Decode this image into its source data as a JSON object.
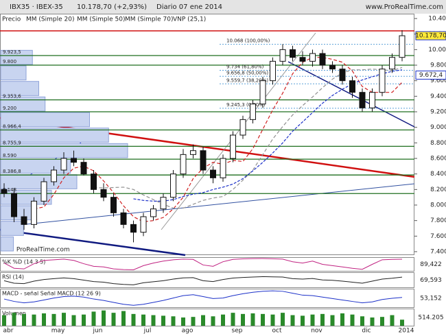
{
  "header": {
    "symbol": "IBX35 · IBEX-35",
    "change": "10.178,70 (+2,93%)",
    "period": "Diario 07 ene 2014",
    "site": "www.ProRealTime.com"
  },
  "watermark": "© ProRealTime.com",
  "chart_data": {
    "type": "candlestick",
    "legend": [
      "Precio",
      "MM (Simple 20)",
      "MM (Simple 50)",
      "MM (Simple 70)",
      "VNP (25,1)"
    ],
    "months": [
      "abr",
      "may",
      "jun",
      "jul",
      "ago",
      "sep",
      "oct",
      "nov",
      "dic",
      "2014"
    ],
    "month_week": [
      0,
      5,
      9,
      14,
      18,
      23,
      27,
      31,
      36,
      40
    ],
    "open": [
      8200,
      8150,
      7850,
      7750,
      8050,
      8300,
      8450,
      8600,
      8550,
      8400,
      8200,
      8100,
      7900,
      7750,
      7650,
      7850,
      7950,
      8100,
      8400,
      8650,
      8700,
      8450,
      8350,
      8600,
      8900,
      9100,
      9300,
      9600,
      9850,
      10000,
      9900,
      9850,
      9950,
      9800,
      9750,
      9600,
      9450,
      9250,
      9450,
      9750,
      9900
    ],
    "high": [
      8280,
      8220,
      7950,
      8100,
      8350,
      8500,
      8680,
      8700,
      8600,
      8450,
      8280,
      8150,
      7950,
      7800,
      7900,
      8000,
      8150,
      8450,
      8720,
      8780,
      8750,
      8500,
      8650,
      8950,
      9150,
      9350,
      9650,
      9900,
      10070,
      10050,
      9980,
      10000,
      10000,
      9850,
      9800,
      9650,
      9500,
      9500,
      9800,
      9950,
      10250
    ],
    "low": [
      8100,
      7780,
      7680,
      7700,
      8000,
      8250,
      8400,
      8500,
      8380,
      8150,
      8050,
      7850,
      7700,
      7520,
      7600,
      7800,
      7900,
      8050,
      8350,
      8600,
      8400,
      8280,
      8300,
      8550,
      8850,
      9050,
      9250,
      9550,
      9800,
      9850,
      9800,
      9780,
      9750,
      9700,
      9550,
      9380,
      9200,
      9200,
      9400,
      9700,
      9850
    ],
    "close": [
      8150,
      7850,
      7750,
      8050,
      8300,
      8450,
      8600,
      8550,
      8400,
      8200,
      8100,
      7900,
      7750,
      7650,
      7850,
      7950,
      8100,
      8400,
      8650,
      8700,
      8450,
      8350,
      8600,
      8900,
      9100,
      9300,
      9600,
      9850,
      10000,
      9900,
      9850,
      9950,
      9800,
      9750,
      9600,
      9450,
      9250,
      9450,
      9750,
      9900,
      10178.7
    ],
    "series": [
      {
        "name": "MM (Simple 20)",
        "color": "#d02020",
        "values": [
          null,
          null,
          null,
          7950,
          7975,
          8137,
          8350,
          8475,
          8500,
          8440,
          8310,
          8160,
          7990,
          7850,
          7785,
          7800,
          7840,
          7950,
          8100,
          8340,
          8475,
          8550,
          8525,
          8575,
          8560,
          8725,
          8975,
          9225,
          9440,
          9690,
          9837,
          9900,
          9900,
          9875,
          9838,
          9725,
          9525,
          9450,
          9450,
          9450,
          9580
        ]
      },
      {
        "name": "MM (Simple 50)",
        "color": "#909090",
        "values": [
          null,
          null,
          null,
          null,
          null,
          null,
          null,
          null,
          null,
          8225,
          8220,
          8225,
          8230,
          8200,
          8130,
          8070,
          8010,
          7960,
          7960,
          8010,
          8060,
          8090,
          8110,
          8200,
          8320,
          8450,
          8650,
          8850,
          9010,
          9160,
          9280,
          9390,
          9510,
          9620,
          9700,
          9740,
          9740,
          9750,
          9740,
          9730,
          9770
        ]
      },
      {
        "name": "MM (Simple 70)",
        "color": "#1a2fc8",
        "values": [
          null,
          null,
          null,
          null,
          null,
          null,
          null,
          null,
          null,
          null,
          null,
          null,
          null,
          8080,
          8060,
          8050,
          8050,
          8070,
          8110,
          8140,
          8160,
          8200,
          8230,
          8270,
          8340,
          8440,
          8550,
          8670,
          8800,
          8950,
          9070,
          9190,
          9310,
          9410,
          9490,
          9560,
          9610,
          9650,
          9690,
          9720,
          9740
        ]
      }
    ],
    "volume_profile": {
      "bins": [
        7400,
        7600,
        7800,
        8000,
        8200,
        8400,
        8600,
        8800,
        9000,
        9200,
        9400,
        9600,
        9800,
        10000
      ],
      "values": [
        10,
        18,
        25,
        40,
        60,
        55,
        100,
        85,
        70,
        35,
        30,
        20,
        25
      ],
      "color": "#c8d4f0"
    },
    "ylim": [
      7356,
      10462
    ],
    "yticks": [
      {
        "value": 7400,
        "label": "7.400"
      },
      {
        "value": 7600,
        "label": "7.600"
      },
      {
        "value": 7800,
        "label": "7.800"
      },
      {
        "value": 8000,
        "label": "8.000"
      },
      {
        "value": 8200,
        "label": "8.200"
      },
      {
        "value": 8400,
        "label": "8.400"
      },
      {
        "value": 8600,
        "label": "8.600"
      },
      {
        "value": 8800,
        "label": "8.800"
      },
      {
        "value": 9000,
        "label": "9.000"
      },
      {
        "value": 9200,
        "label": "9.200"
      },
      {
        "value": 9400,
        "label": "9.400"
      },
      {
        "value": 9600,
        "label": "9.600"
      },
      {
        "value": 9800,
        "label": "9.800"
      },
      {
        "value": 10000,
        "label": "10.000"
      },
      {
        "value": 10200,
        "label": "10.200"
      },
      {
        "value": 10400,
        "label": "10.400"
      }
    ],
    "levels": [
      {
        "value": 9923.5,
        "label": "9.923,5"
      },
      {
        "value": 9800,
        "label": "9.800"
      },
      {
        "value": 9353.6,
        "label": "9.353,6"
      },
      {
        "value": 9200,
        "label": "9.200"
      },
      {
        "value": 8966.4,
        "label": "8.966,4"
      },
      {
        "value": 8755.9,
        "label": "8.755,9"
      },
      {
        "value": 8590,
        "label": "8.590"
      },
      {
        "value": 8386.8,
        "label": "8.386,8"
      },
      {
        "value": 8148,
        "label": "8.148"
      }
    ],
    "fib": [
      {
        "value": 10068,
        "label": "10.068 (100,00%)"
      },
      {
        "value": 9734,
        "label": "9.734 (61,80%)"
      },
      {
        "value": 9656.8,
        "label": "9.656,8 (50,00%)"
      },
      {
        "value": 9559.7,
        "label": "9.559,7 (38,20%)"
      },
      {
        "value": 9245.3,
        "label": "9.245,3 (0,00%)"
      }
    ],
    "last_price": {
      "value": 10178.7,
      "label": "10.178,70"
    },
    "marker": {
      "value": 9672.4,
      "label": "9.672,4"
    },
    "indicators": [
      {
        "name": "%K  %D (14 3 5)",
        "color": "#c02080",
        "ylim": [
          0,
          100
        ],
        "last_label": "89,422",
        "values": [
          60,
          20,
          15,
          55,
          80,
          85,
          90,
          80,
          55,
          35,
          30,
          15,
          10,
          8,
          40,
          60,
          75,
          85,
          90,
          88,
          45,
          35,
          70,
          88,
          92,
          94,
          95,
          93,
          90,
          70,
          60,
          75,
          50,
          40,
          30,
          20,
          12,
          50,
          85,
          88,
          89.422
        ]
      },
      {
        "name": "RSI (14)",
        "color": "#202020",
        "ylim": [
          20,
          90
        ],
        "last_label": "69,593",
        "values": [
          52,
          40,
          38,
          50,
          58,
          62,
          66,
          62,
          55,
          48,
          45,
          38,
          34,
          32,
          42,
          47,
          52,
          60,
          66,
          67,
          52,
          48,
          58,
          65,
          68,
          70,
          72,
          71,
          70,
          62,
          60,
          63,
          56,
          54,
          50,
          45,
          40,
          50,
          60,
          64,
          69.593
        ]
      },
      {
        "name": "MACD - señal  Señal  MACD (12 26 9)",
        "color": "#1a2fc8",
        "ylim": [
          -150,
          220
        ],
        "last_label": "53,152",
        "values": [
          20,
          -30,
          -60,
          -40,
          0,
          40,
          70,
          80,
          60,
          20,
          -10,
          -50,
          -90,
          -110,
          -90,
          -50,
          -10,
          40,
          90,
          110,
          70,
          30,
          40,
          90,
          130,
          160,
          180,
          190,
          180,
          140,
          100,
          90,
          60,
          30,
          0,
          -30,
          -60,
          -40,
          10,
          35,
          53.152
        ]
      },
      {
        "name": "Volumen",
        "color": "#2a8a2a",
        "ylim": [
          0,
          1400000
        ],
        "last_label": "514.205",
        "values": [
          900000,
          1100000,
          1000000,
          950000,
          1050000,
          1000000,
          1100000,
          900000,
          950000,
          1200000,
          1300000,
          1100000,
          1250000,
          1000000,
          950000,
          900000,
          850000,
          800000,
          700000,
          750000,
          900000,
          800000,
          950000,
          1100000,
          1000000,
          1050000,
          1000000,
          950000,
          1100000,
          900000,
          850000,
          950000,
          1000000,
          900000,
          1050000,
          950000,
          800000,
          700000,
          750000,
          900000,
          514205
        ]
      }
    ]
  }
}
